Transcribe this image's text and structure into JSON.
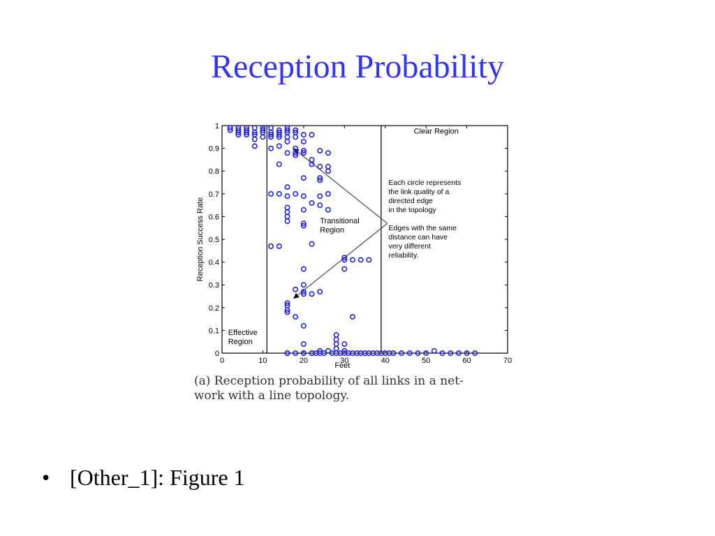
{
  "slide": {
    "title": "Reception Probability",
    "bullet_text": "[Other_1]: Figure 1",
    "caption_line1": "(a) Reception probability of all links in a net-",
    "caption_line2": "work with a line topology.",
    "colors": {
      "title": "#3333ff",
      "markers": "#2222dd",
      "text": "#000000"
    }
  },
  "chart_data": {
    "type": "scatter",
    "xlabel": "Feet",
    "ylabel": "Reception Success Rate",
    "xlim": [
      0,
      70
    ],
    "ylim": [
      0,
      1
    ],
    "xticks": [
      0,
      10,
      20,
      30,
      40,
      50,
      60,
      70
    ],
    "yticks": [
      0,
      0.1,
      0.2,
      0.3,
      0.4,
      0.5,
      0.6,
      0.7,
      0.8,
      0.9,
      1
    ],
    "region_boundaries_x": [
      11,
      39
    ],
    "region_labels": {
      "effective": [
        "Effective",
        "Region"
      ],
      "transitional": [
        "Transitional",
        "Region"
      ],
      "clear": [
        "Clear Region"
      ]
    },
    "annotation_lines": [
      "Each circle represents",
      "the link quality of a",
      "directed edge",
      "in the topology",
      "",
      "Edges with the same",
      "distance can have",
      "very different",
      "reliability."
    ],
    "x": [
      2,
      2,
      4,
      4,
      4,
      4,
      6,
      6,
      6,
      6,
      8,
      8,
      8,
      8,
      8,
      10,
      10,
      10,
      10,
      12,
      12,
      12,
      12,
      12,
      14,
      14,
      14,
      14,
      14,
      14,
      16,
      16,
      16,
      16,
      16,
      16,
      18,
      18,
      18,
      18,
      18,
      18,
      20,
      20,
      20,
      20,
      22,
      22,
      22,
      24,
      24,
      24,
      26,
      26,
      12,
      14,
      16,
      16,
      16,
      16,
      16,
      16,
      18,
      20,
      20,
      20,
      20,
      20,
      22,
      22,
      24,
      24,
      24,
      26,
      26,
      26,
      12,
      14,
      16,
      16,
      16,
      16,
      18,
      18,
      20,
      20,
      20,
      20,
      20,
      22,
      24,
      32,
      30,
      30,
      30,
      34,
      36,
      16,
      18,
      20,
      20,
      22,
      24,
      28,
      28,
      28,
      28,
      30,
      30,
      32,
      34,
      16,
      20,
      22,
      23,
      24,
      25,
      26,
      27,
      28,
      29,
      30,
      31,
      32,
      33,
      34,
      35,
      36,
      37,
      38,
      39,
      40,
      41,
      42,
      44,
      46,
      48,
      50,
      52,
      54,
      56,
      58,
      60,
      62
    ],
    "y": [
      0.99,
      0.98,
      0.99,
      0.98,
      0.97,
      0.96,
      0.99,
      0.98,
      0.97,
      0.96,
      0.99,
      0.97,
      0.96,
      0.94,
      0.91,
      0.99,
      0.98,
      0.97,
      0.95,
      0.99,
      0.97,
      0.96,
      0.95,
      0.9,
      0.98,
      0.97,
      0.96,
      0.95,
      0.91,
      0.83,
      0.99,
      0.98,
      0.97,
      0.95,
      0.93,
      0.88,
      0.98,
      0.97,
      0.95,
      0.9,
      0.88,
      0.87,
      0.96,
      0.93,
      0.89,
      0.88,
      0.96,
      0.85,
      0.83,
      0.89,
      0.82,
      0.77,
      0.88,
      0.82,
      0.7,
      0.7,
      0.73,
      0.69,
      0.64,
      0.62,
      0.6,
      0.58,
      0.7,
      0.77,
      0.69,
      0.63,
      0.57,
      0.56,
      0.66,
      0.48,
      0.76,
      0.69,
      0.65,
      0.8,
      0.63,
      0.7,
      0.47,
      0.47,
      0.22,
      0.21,
      0.19,
      0.18,
      0.28,
      0.16,
      0.3,
      0.27,
      0.26,
      0.12,
      0.37,
      0.26,
      0.27,
      0.41,
      0.42,
      0.41,
      0.37,
      0.41,
      0.41,
      0.0,
      0.0,
      0.0,
      0.04,
      0.0,
      0.0,
      0.08,
      0.06,
      0.04,
      0.02,
      0.04,
      0.01,
      0.16,
      0.0,
      0.0,
      0.0,
      0.0,
      0.0,
      0.01,
      0.0,
      0.01,
      0.0,
      0.0,
      0.0,
      0.0,
      0.0,
      0.0,
      0.0,
      0.0,
      0.0,
      0.0,
      0.0,
      0.0,
      0.0,
      0.0,
      0.0,
      0.0,
      0.0,
      0.0,
      0.0,
      0.0,
      0.01,
      0.0,
      0.0,
      0.0,
      0.0,
      0.0
    ]
  }
}
